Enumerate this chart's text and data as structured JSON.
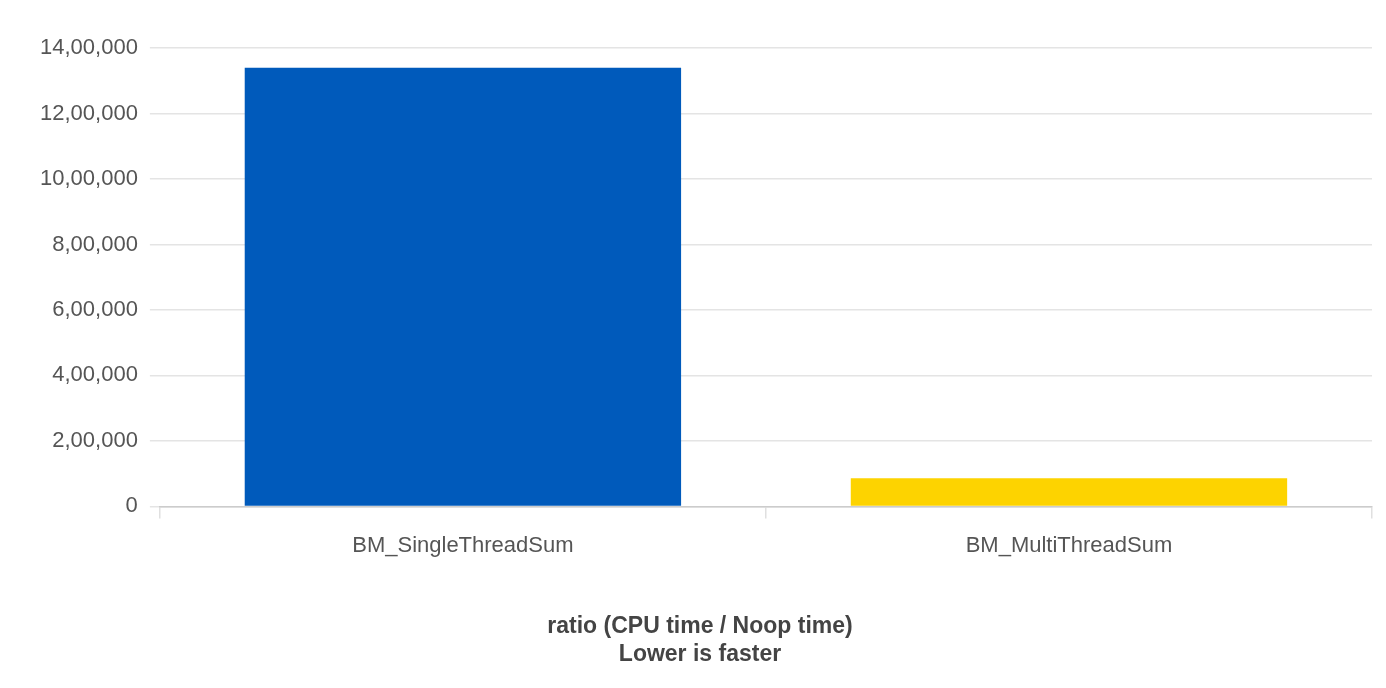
{
  "chart_data": {
    "type": "bar",
    "title": "ratio (CPU time / Noop time)",
    "subtitle": "Lower is faster",
    "categories": [
      "BM_SingleThreadSum",
      "BM_MultiThreadSum"
    ],
    "values": [
      1340000,
      86000
    ],
    "colors": [
      "#005abb",
      "#fdd300"
    ],
    "ylim": [
      0,
      1400000
    ],
    "yticks": [
      {
        "value": 0,
        "label": "0"
      },
      {
        "value": 200000,
        "label": "2,00,000"
      },
      {
        "value": 400000,
        "label": "4,00,000"
      },
      {
        "value": 600000,
        "label": "6,00,000"
      },
      {
        "value": 800000,
        "label": "8,00,000"
      },
      {
        "value": 1000000,
        "label": "10,00,000"
      },
      {
        "value": 1200000,
        "label": "12,00,000"
      },
      {
        "value": 1400000,
        "label": "14,00,000"
      }
    ],
    "grid": "y",
    "legend": false
  }
}
